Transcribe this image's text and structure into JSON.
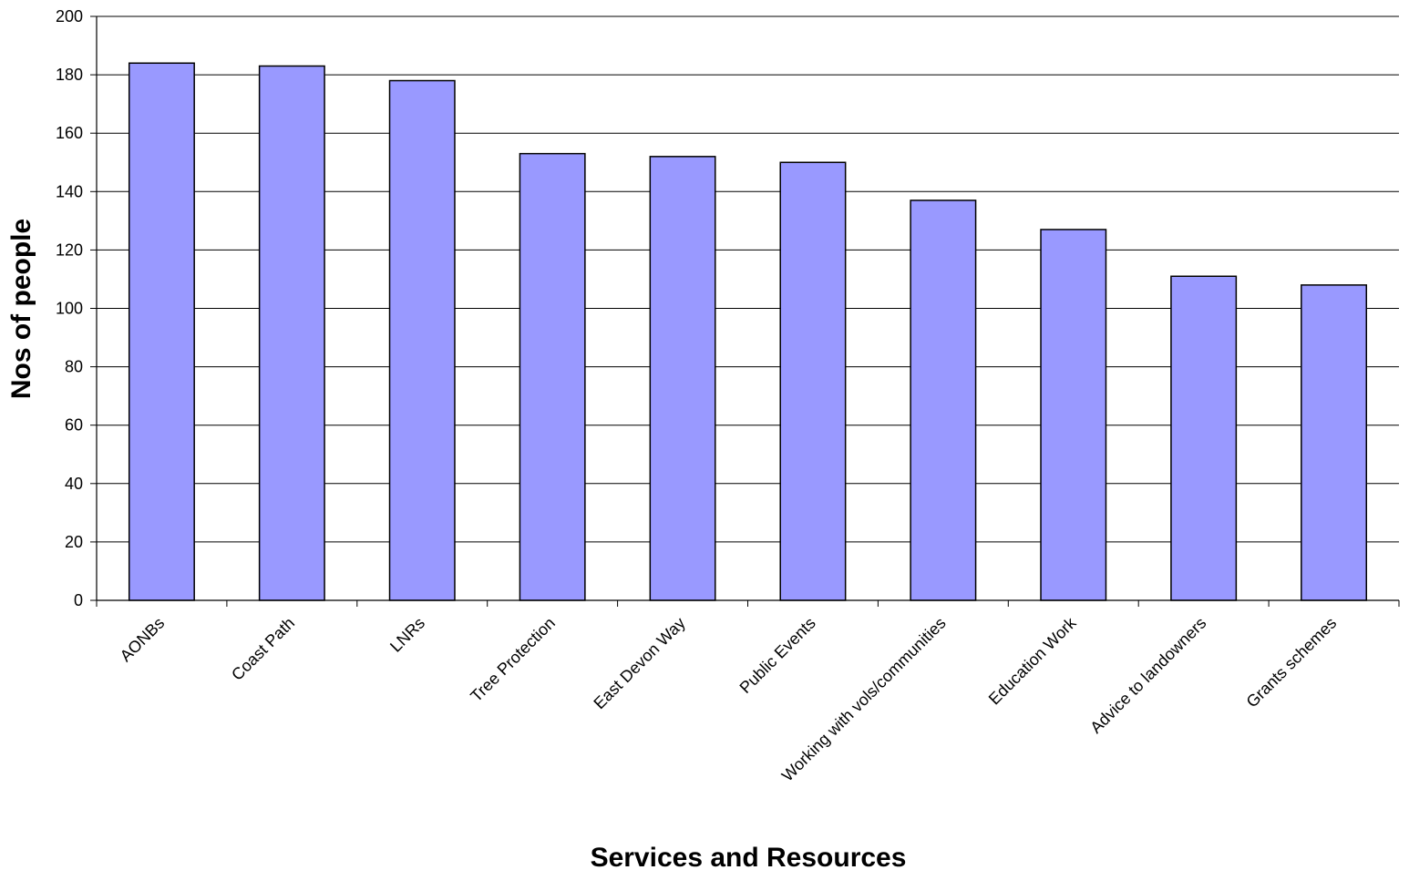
{
  "chart_data": {
    "type": "bar",
    "title": "",
    "xlabel": "Services and Resources",
    "ylabel": "Nos of people",
    "ylim": [
      0,
      200
    ],
    "yticks": [
      0,
      20,
      40,
      60,
      80,
      100,
      120,
      140,
      160,
      180,
      200
    ],
    "grid": true,
    "legend": "none",
    "categories": [
      "AONBs",
      "Coast Path",
      "LNRs",
      "Tree Protection",
      "East Devon Way",
      "Public Events",
      "Working with vols/communities",
      "Education Work",
      "Advice to landowners",
      "Grants schemes"
    ],
    "values": [
      184,
      183,
      178,
      153,
      152,
      150,
      137,
      127,
      111,
      108
    ],
    "colors": {
      "bar_fill": "#9999ff",
      "bar_stroke": "#000000",
      "grid": "#000000"
    }
  }
}
